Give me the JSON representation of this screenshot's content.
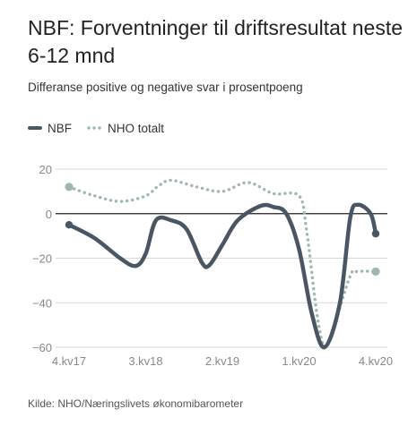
{
  "header": {
    "title": "NBF: Forventninger til driftsresultat neste 6-12 mnd",
    "subtitle": "Differanse positive og negative svar i prosentpoeng"
  },
  "legend": {
    "nbf_label": "NBF",
    "nho_label": "NHO totalt"
  },
  "footer": {
    "source": "Kilde: NHO/Næringslivets økonomibarometer"
  },
  "colors": {
    "nbf": "#4a5664",
    "nho": "#9fb7ad",
    "zero_line": "#222222",
    "grid": "#d8d8d8",
    "tick_text": "#888888"
  },
  "chart_data": {
    "type": "line",
    "title": "NBF: Forventninger til driftsresultat neste 6-12 mnd",
    "subtitle": "Differanse positive og negative svar i prosentpoeng",
    "xlabel": "",
    "ylabel": "",
    "ylim": [
      -60,
      20
    ],
    "xlim": [
      0,
      12
    ],
    "yticks": [
      20,
      0,
      -20,
      -40,
      -60
    ],
    "xticks": [
      {
        "x": 0,
        "label": "4.kv17"
      },
      {
        "x": 3,
        "label": "3.kv18"
      },
      {
        "x": 6,
        "label": "2.kv19"
      },
      {
        "x": 9,
        "label": "1.kv20"
      },
      {
        "x": 12,
        "label": "4.kv20"
      }
    ],
    "grid": true,
    "legend_position": "top-left",
    "series": [
      {
        "name": "NBF",
        "style": "solid",
        "end_markers": true,
        "points": [
          [
            0,
            -5
          ],
          [
            1,
            -11
          ],
          [
            2,
            -20
          ],
          [
            2.6,
            -23.5
          ],
          [
            3,
            -18
          ],
          [
            3.4,
            -3
          ],
          [
            4,
            -3
          ],
          [
            4.6,
            -7
          ],
          [
            5.2,
            -22
          ],
          [
            5.5,
            -23
          ],
          [
            6,
            -14
          ],
          [
            6.6,
            -3
          ],
          [
            7.5,
            3.5
          ],
          [
            8,
            3
          ],
          [
            8.5,
            0
          ],
          [
            9,
            -16
          ],
          [
            9.5,
            -45
          ],
          [
            10,
            -60
          ],
          [
            10.6,
            -40
          ],
          [
            11,
            -2
          ],
          [
            11.3,
            4
          ],
          [
            11.8,
            0
          ],
          [
            12,
            -9
          ]
        ]
      },
      {
        "name": "NHO totalt",
        "style": "dotted",
        "end_markers": true,
        "points": [
          [
            0,
            12
          ],
          [
            1,
            8
          ],
          [
            2,
            5.5
          ],
          [
            3,
            8
          ],
          [
            3.5,
            12.5
          ],
          [
            4,
            15
          ],
          [
            5,
            12
          ],
          [
            6,
            10
          ],
          [
            7,
            14
          ],
          [
            8,
            9
          ],
          [
            9,
            8
          ],
          [
            9.3,
            -8
          ],
          [
            9.7,
            -45
          ],
          [
            10,
            -60
          ],
          [
            10.3,
            -53
          ],
          [
            11,
            -28
          ],
          [
            11.3,
            -26
          ],
          [
            12,
            -26
          ]
        ]
      }
    ]
  }
}
